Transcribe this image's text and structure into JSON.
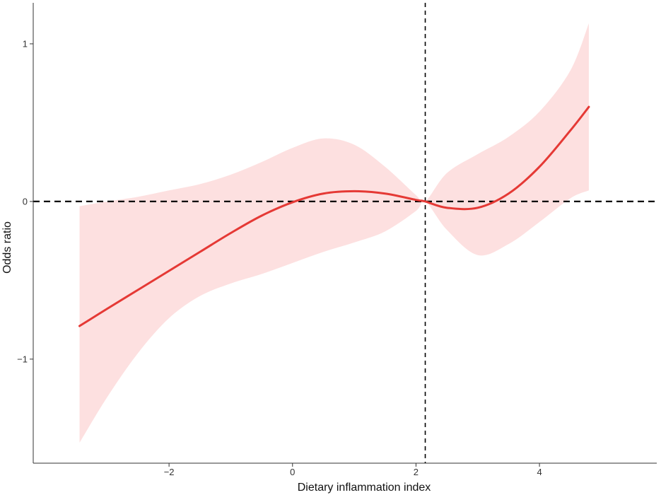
{
  "chart_data": {
    "type": "line",
    "xlabel": "Dietary inflammation index",
    "ylabel": "Odds ratio",
    "xlim": [
      -4.2,
      5.9
    ],
    "ylim": [
      -1.66,
      1.26
    ],
    "x_ticks": [
      -2,
      0,
      2,
      4
    ],
    "x_tick_labels": [
      "−2",
      "0",
      "2",
      "4"
    ],
    "y_ticks": [
      -1,
      0,
      1
    ],
    "y_tick_labels": [
      "−1",
      "0",
      "1"
    ],
    "grid": false,
    "legend": "none",
    "reference_lines": {
      "horizontal_y": 0,
      "vertical_x": 2.15
    },
    "colors": {
      "line": "#e53935",
      "band": "#fde0e0",
      "reference": "#000000",
      "axis": "#333333"
    },
    "series": [
      {
        "x": [
          -3.45,
          -3.0,
          -2.5,
          -2.0,
          -1.5,
          -1.0,
          -0.5,
          0.0,
          0.5,
          1.0,
          1.5,
          2.0,
          2.15,
          2.5,
          3.0,
          3.5,
          4.0,
          4.5,
          4.8
        ],
        "y": [
          -0.79,
          -0.68,
          -0.56,
          -0.44,
          -0.32,
          -0.2,
          -0.09,
          -0.005,
          0.05,
          0.065,
          0.05,
          0.01,
          0.0,
          -0.04,
          -0.04,
          0.05,
          0.22,
          0.45,
          0.6
        ],
        "lower": [
          -1.53,
          -1.24,
          -0.96,
          -0.74,
          -0.6,
          -0.52,
          -0.46,
          -0.39,
          -0.32,
          -0.26,
          -0.19,
          -0.06,
          0.0,
          -0.18,
          -0.34,
          -0.27,
          -0.13,
          0.02,
          0.07
        ],
        "upper": [
          -0.03,
          0.0,
          0.03,
          0.07,
          0.11,
          0.17,
          0.25,
          0.34,
          0.4,
          0.36,
          0.22,
          0.04,
          0.0,
          0.18,
          0.3,
          0.41,
          0.57,
          0.83,
          1.13
        ]
      }
    ]
  }
}
